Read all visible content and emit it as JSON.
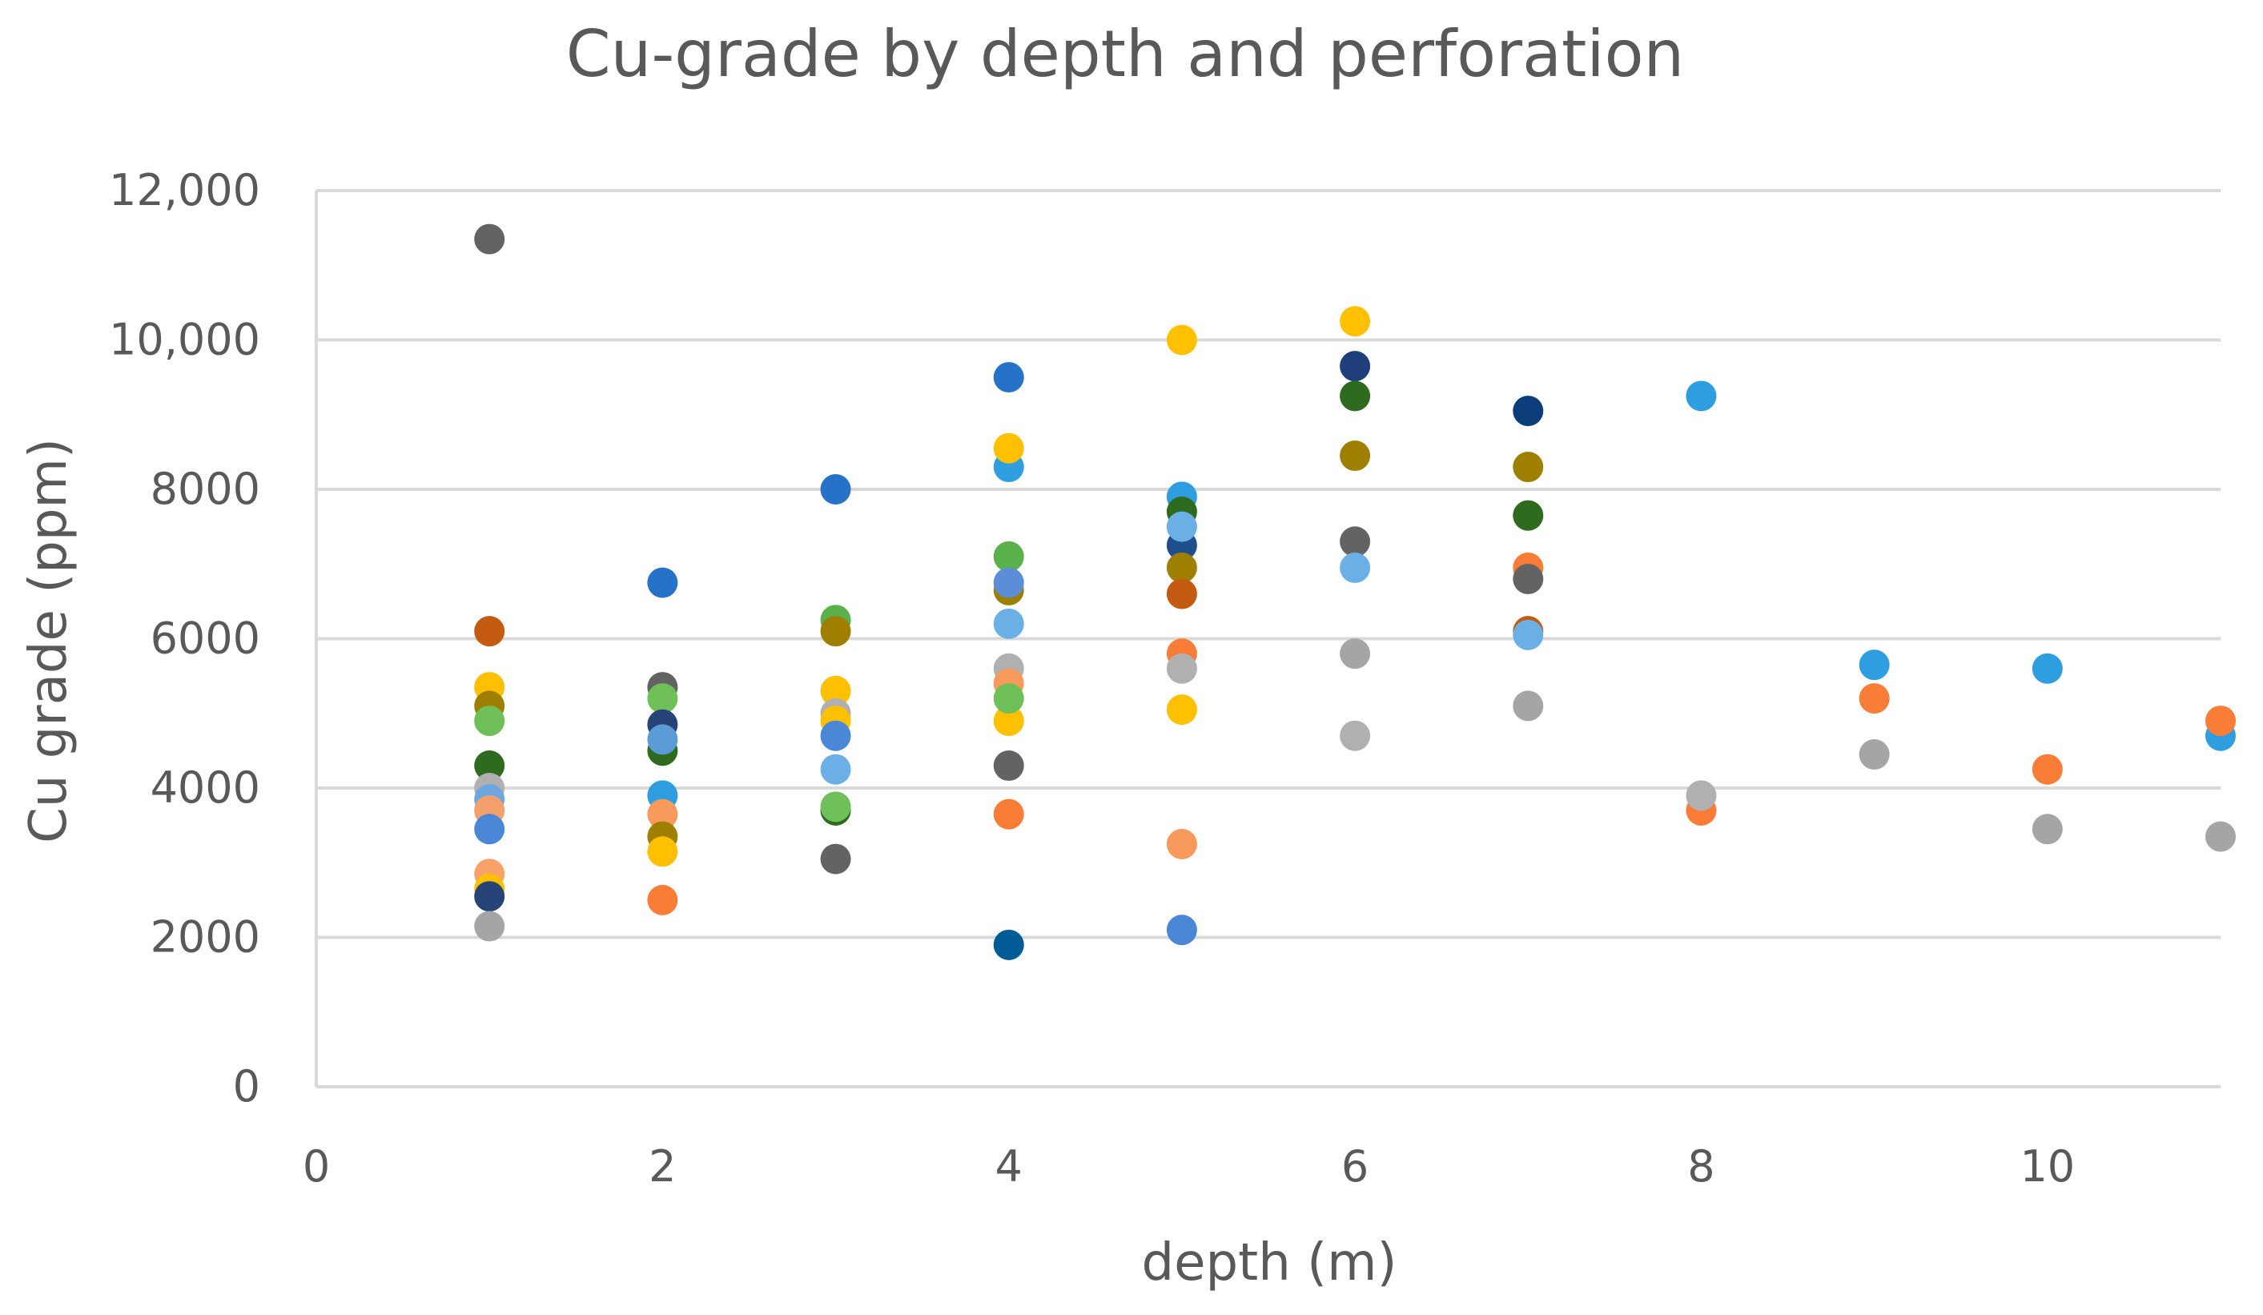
{
  "chart_data": {
    "type": "scatter",
    "title": "Cu-grade by depth and perforation",
    "xlabel": "depth (m)",
    "ylabel": "Cu grade (ppm)",
    "xlim": [
      0,
      11
    ],
    "ylim": [
      0,
      12000
    ],
    "x_ticks": [
      0,
      2,
      4,
      6,
      8,
      10
    ],
    "x_tick_labels": [
      "0",
      "2",
      "4",
      "6",
      "8",
      "10"
    ],
    "y_ticks": [
      0,
      2000,
      4000,
      6000,
      8000,
      10000,
      12000
    ],
    "y_tick_labels": [
      "0",
      "2000",
      "4000",
      "6000",
      "8000",
      "10,000",
      "12,000"
    ],
    "grid": "horizontal",
    "legend": "none",
    "points": [
      [
        1,
        11350,
        "#636363"
      ],
      [
        1,
        6100,
        "#c55a11"
      ],
      [
        1,
        5350,
        "#ffc000"
      ],
      [
        1,
        5100,
        "#9e7f00"
      ],
      [
        1,
        4900,
        "#70c05a"
      ],
      [
        1,
        4300,
        "#2e6b1e"
      ],
      [
        1,
        4000,
        "#b0b0b0"
      ],
      [
        1,
        3850,
        "#6ea6e0"
      ],
      [
        1,
        3700,
        "#f4a06c"
      ],
      [
        1,
        3450,
        "#4a87d6"
      ],
      [
        1,
        2850,
        "#f9a36a"
      ],
      [
        1,
        2650,
        "#ffc000"
      ],
      [
        1,
        2550,
        "#264478"
      ],
      [
        1,
        2150,
        "#a5a5a5"
      ],
      [
        2,
        6750,
        "#2672c9"
      ],
      [
        2,
        5350,
        "#636363"
      ],
      [
        2,
        5200,
        "#70c05a"
      ],
      [
        2,
        4850,
        "#264478"
      ],
      [
        2,
        4500,
        "#2e6b1e"
      ],
      [
        2,
        4650,
        "#5b9bd5"
      ],
      [
        2,
        3900,
        "#2e9ee0"
      ],
      [
        2,
        3650,
        "#f79a5c"
      ],
      [
        2,
        3350,
        "#9e7f00"
      ],
      [
        2,
        3150,
        "#ffc000"
      ],
      [
        2,
        2500,
        "#f97d36"
      ],
      [
        3,
        8000,
        "#2672c9"
      ],
      [
        3,
        6250,
        "#5ab04a"
      ],
      [
        3,
        6100,
        "#9e7f00"
      ],
      [
        3,
        5300,
        "#ffc000"
      ],
      [
        3,
        5000,
        "#b0b0b0"
      ],
      [
        3,
        4900,
        "#ffc000"
      ],
      [
        3,
        4700,
        "#4a87d6"
      ],
      [
        3,
        4250,
        "#6ab0e6"
      ],
      [
        3,
        3700,
        "#2e6b1e"
      ],
      [
        3,
        3750,
        "#70c05a"
      ],
      [
        3,
        3050,
        "#636363"
      ],
      [
        4,
        9500,
        "#2672c9"
      ],
      [
        4,
        8300,
        "#2e9ee0"
      ],
      [
        4,
        8550,
        "#ffc000"
      ],
      [
        4,
        7100,
        "#5ab04a"
      ],
      [
        4,
        6650,
        "#9e7f00"
      ],
      [
        4,
        6750,
        "#5b8ed6"
      ],
      [
        4,
        6200,
        "#6ab0e6"
      ],
      [
        4,
        5600,
        "#b0b0b0"
      ],
      [
        4,
        5400,
        "#f79a5c"
      ],
      [
        4,
        4900,
        "#ffc000"
      ],
      [
        4,
        5200,
        "#70c05a"
      ],
      [
        4,
        4300,
        "#636363"
      ],
      [
        4,
        3650,
        "#f97d36"
      ],
      [
        4,
        1900,
        "#005b96"
      ],
      [
        5,
        10000,
        "#ffc000"
      ],
      [
        5,
        7900,
        "#2e9ee0"
      ],
      [
        5,
        7700,
        "#2e6b1e"
      ],
      [
        5,
        7250,
        "#1f4e8c"
      ],
      [
        5,
        7500,
        "#6ab0e6"
      ],
      [
        5,
        6950,
        "#9e7f00"
      ],
      [
        5,
        6600,
        "#c55a11"
      ],
      [
        5,
        5800,
        "#f97d36"
      ],
      [
        5,
        5600,
        "#b0b0b0"
      ],
      [
        5,
        5050,
        "#ffc000"
      ],
      [
        5,
        3250,
        "#f79a5c"
      ],
      [
        5,
        2100,
        "#4a87d6"
      ],
      [
        6,
        10250,
        "#ffc000"
      ],
      [
        6,
        9650,
        "#1f3f7a"
      ],
      [
        6,
        9250,
        "#2e6b1e"
      ],
      [
        6,
        8450,
        "#9e7f00"
      ],
      [
        6,
        7300,
        "#636363"
      ],
      [
        6,
        6950,
        "#6ab0e6"
      ],
      [
        6,
        5800,
        "#a5a5a5"
      ],
      [
        6,
        4700,
        "#b0b0b0"
      ],
      [
        7,
        9050,
        "#0b3d7a"
      ],
      [
        7,
        8300,
        "#9e7f00"
      ],
      [
        7,
        7650,
        "#2e6b1e"
      ],
      [
        7,
        6950,
        "#f97d36"
      ],
      [
        7,
        6800,
        "#636363"
      ],
      [
        7,
        6100,
        "#c55a11"
      ],
      [
        7,
        6050,
        "#6ab0e6"
      ],
      [
        7,
        5100,
        "#a5a5a5"
      ],
      [
        8,
        9250,
        "#2e9ee0"
      ],
      [
        8,
        3700,
        "#f97d36"
      ],
      [
        8,
        3900,
        "#b0b0b0"
      ],
      [
        9,
        5650,
        "#2e9ee0"
      ],
      [
        9,
        5200,
        "#f97d36"
      ],
      [
        9,
        4450,
        "#a5a5a5"
      ],
      [
        10,
        5600,
        "#2e9ee0"
      ],
      [
        10,
        4250,
        "#f97d36"
      ],
      [
        10,
        3450,
        "#a5a5a5"
      ],
      [
        11,
        4700,
        "#2e9ee0"
      ],
      [
        11,
        4900,
        "#f97d36"
      ],
      [
        11,
        3350,
        "#a5a5a5"
      ]
    ]
  }
}
